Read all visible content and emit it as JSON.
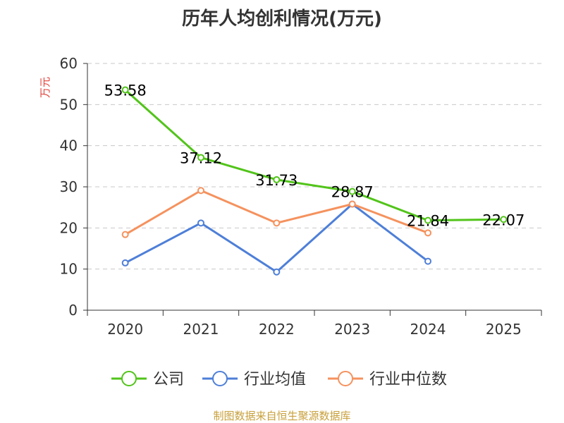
{
  "chart_data": {
    "type": "line",
    "title": "历年人均创利情况(万元)",
    "ylabel": "万元",
    "xlabel": "",
    "ylim": [
      0,
      60
    ],
    "yticks": [
      0,
      10,
      20,
      30,
      40,
      50,
      60
    ],
    "categories": [
      "2020",
      "2021",
      "2022",
      "2023",
      "2024",
      "2025"
    ],
    "grid": true,
    "legend_position": "bottom",
    "series": [
      {
        "name": "公司",
        "color": "#52c41a",
        "values": [
          53.58,
          37.12,
          31.73,
          28.87,
          21.84,
          22.07
        ],
        "labels": [
          "53.58",
          "37.12",
          "31.73",
          "28.87",
          "21.84",
          "22.07"
        ]
      },
      {
        "name": "行业均值",
        "color": "#4e7fd8",
        "values": [
          11.5,
          21.2,
          9.3,
          25.8,
          11.9,
          null
        ]
      },
      {
        "name": "行业中位数",
        "color": "#f5925e",
        "values": [
          18.4,
          29.1,
          21.2,
          25.8,
          18.8,
          null
        ]
      }
    ]
  },
  "footer": {
    "source": "制图数据来自恒生聚源数据库"
  }
}
